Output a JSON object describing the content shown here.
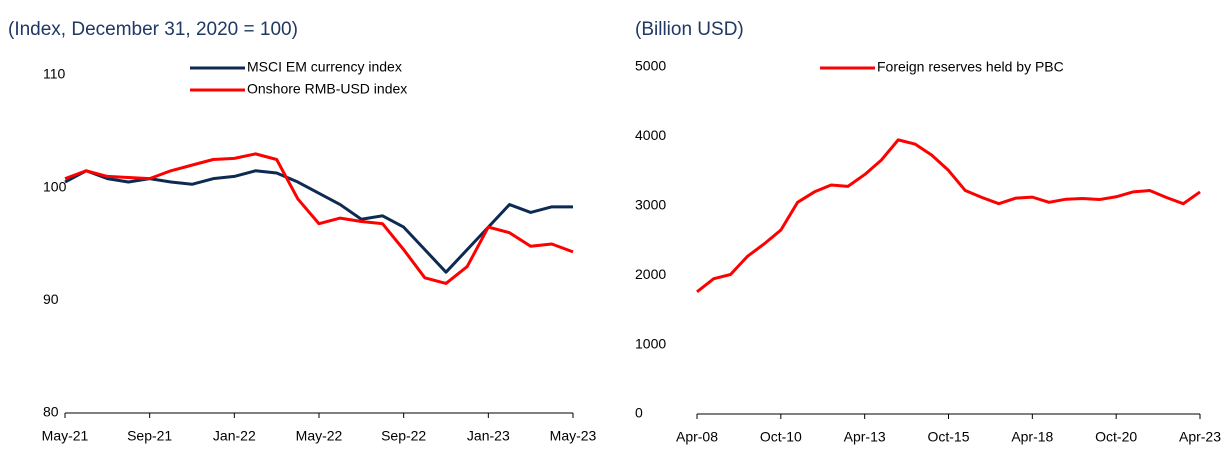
{
  "chart_data": [
    {
      "type": "line",
      "title": "(Index, December 31, 2020 = 100)",
      "categories": [
        "May-21",
        null,
        null,
        null,
        "Sep-21",
        null,
        null,
        null,
        "Jan-22",
        null,
        null,
        null,
        "May-22",
        null,
        null,
        null,
        "Sep-22",
        null,
        null,
        null,
        "Jan-23",
        null,
        null,
        null,
        "May-23"
      ],
      "series": [
        {
          "name": "MSCI EM currency index",
          "color": "#0d2b52",
          "values": [
            100.5,
            101.5,
            100.8,
            100.5,
            100.8,
            100.5,
            100.3,
            100.8,
            101.0,
            101.5,
            101.3,
            100.5,
            99.5,
            98.5,
            97.2,
            97.5,
            96.5,
            94.5,
            92.5,
            94.5,
            96.5,
            98.5,
            97.8,
            98.3,
            98.3
          ]
        },
        {
          "name": "Onshore RMB-USD index",
          "color": "#ff0000",
          "values": [
            100.8,
            101.5,
            101.0,
            100.9,
            100.8,
            101.5,
            102.0,
            102.5,
            102.6,
            103.0,
            102.5,
            99.0,
            96.8,
            97.3,
            97.0,
            96.8,
            94.5,
            92.0,
            91.5,
            93.0,
            96.5,
            96.0,
            94.8,
            95.0,
            94.3
          ]
        }
      ],
      "ylim": [
        80,
        110
      ],
      "yticks": [
        80,
        90,
        100,
        110
      ]
    },
    {
      "type": "line",
      "title": "(Billion USD)",
      "categories": [
        "Apr-08",
        null,
        null,
        null,
        null,
        "Oct-10",
        null,
        null,
        null,
        null,
        "Apr-13",
        null,
        null,
        null,
        null,
        "Oct-15",
        null,
        null,
        null,
        null,
        "Apr-18",
        null,
        null,
        null,
        null,
        "Oct-20",
        null,
        null,
        null,
        null,
        "Apr-23"
      ],
      "series": [
        {
          "name": "Foreign reserves held by PBC",
          "color": "#ff0000",
          "values": [
            1760,
            1950,
            2010,
            2270,
            2450,
            2650,
            3050,
            3200,
            3300,
            3280,
            3450,
            3660,
            3950,
            3890,
            3730,
            3510,
            3220,
            3120,
            3030,
            3110,
            3125,
            3050,
            3095,
            3105,
            3090,
            3130,
            3200,
            3220,
            3120,
            3030,
            3200
          ]
        }
      ],
      "ylim": [
        0,
        5000
      ],
      "yticks": [
        0,
        1000,
        2000,
        3000,
        4000,
        5000
      ]
    }
  ]
}
